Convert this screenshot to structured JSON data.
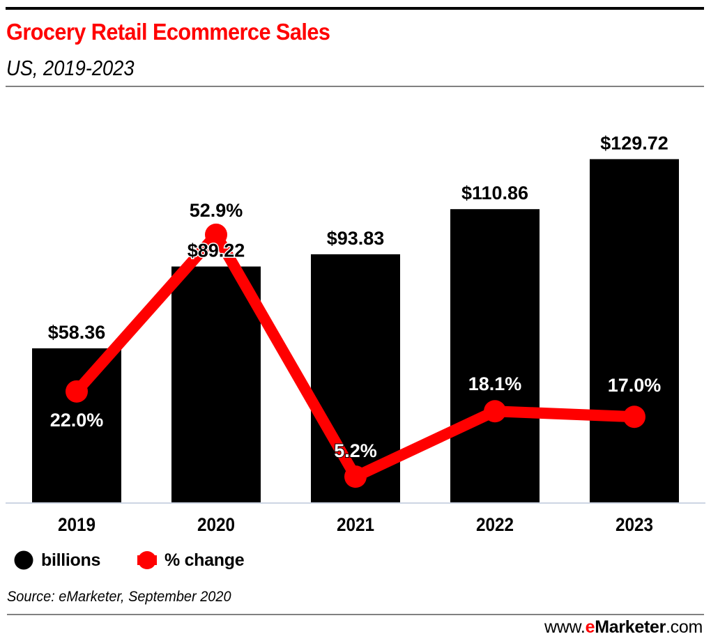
{
  "header": {
    "title": "Grocery Retail Ecommerce Sales",
    "subtitle": "US, 2019-2023"
  },
  "legend": [
    {
      "label": "billions",
      "marker": "circle-icon",
      "color": "#000000"
    },
    {
      "label": "% change",
      "marker": "line-marker-icon",
      "color": "#ff0000"
    }
  ],
  "footer": {
    "source": "Source: eMarketer, September 2020",
    "brand_prefix": "www.",
    "brand_e": "e",
    "brand_name": "Marketer",
    "brand_suffix": ".com"
  },
  "colors": {
    "bar": "#000000",
    "line": "#ff0000",
    "title": "#ff0000",
    "baseline": "#cdd5e3"
  },
  "chart_data": {
    "type": "bar",
    "title": "Grocery Retail Ecommerce Sales",
    "subtitle": "US, 2019-2023",
    "xlabel": "",
    "ylabel": "",
    "categories": [
      "2019",
      "2020",
      "2021",
      "2022",
      "2023"
    ],
    "series": [
      {
        "name": "billions",
        "type": "bar",
        "values": [
          58.36,
          89.22,
          93.83,
          110.86,
          129.72
        ],
        "labels": [
          "$58.36",
          "$89.22",
          "$93.83",
          "$110.86",
          "$129.72"
        ]
      },
      {
        "name": "% change",
        "type": "line",
        "values": [
          22.0,
          52.9,
          5.2,
          18.1,
          17.0
        ],
        "labels": [
          "22.0%",
          "52.9%",
          "5.2%",
          "18.1%",
          "17.0%"
        ]
      }
    ],
    "ylim_bars": [
      0,
      190
    ],
    "ylim_line": [
      0,
      99
    ],
    "grid": false,
    "legend_position": "bottom-left"
  }
}
